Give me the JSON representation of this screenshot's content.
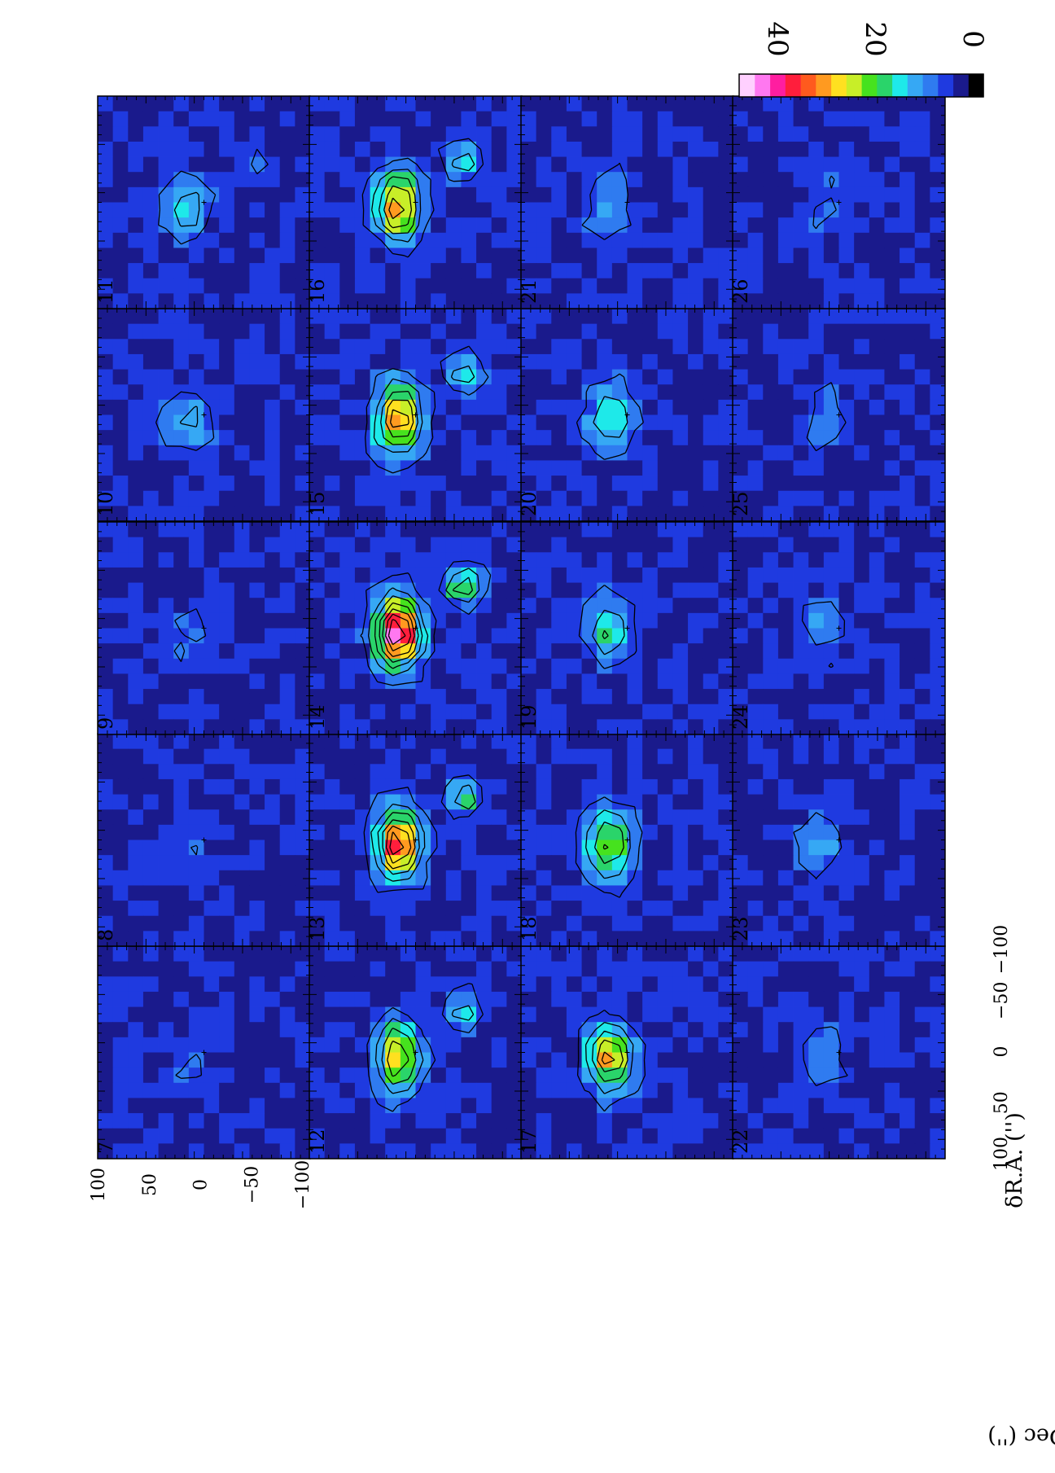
{
  "chart_data": {
    "type": "heatmap",
    "layout": "channel-map grid, 4 rows x 5 columns, rendered rotated 90 degrees counter-clockwise",
    "panels": [
      "7",
      "8",
      "9",
      "10",
      "11",
      "12",
      "13",
      "14",
      "15",
      "16",
      "17",
      "18",
      "19",
      "20",
      "21",
      "22",
      "23",
      "24",
      "25",
      "26"
    ],
    "panel_peak": [
      3,
      3,
      3,
      9,
      11,
      25,
      33,
      41,
      29,
      28,
      26,
      21,
      14,
      13,
      8,
      7,
      6,
      6,
      5,
      4
    ],
    "xlabel": "δR.A. ('')",
    "ylabel": "δDec ('')",
    "x_ticks": [
      "100",
      "50",
      "0",
      "−50",
      "−100"
    ],
    "y_ticks": [
      "100",
      "50",
      "0",
      "−50",
      "−100"
    ],
    "xlim": [
      110,
      -110
    ],
    "ylim": [
      -110,
      110
    ],
    "colorbar": {
      "ticks": [
        "40",
        "20",
        "0"
      ],
      "range": [
        -4,
        46
      ],
      "colors": [
        "#000000",
        "#1a1a8c",
        "#1f3ae0",
        "#2f7bf0",
        "#36a8f4",
        "#1ee9e9",
        "#2ad46a",
        "#46e21e",
        "#c8ee28",
        "#ffe020",
        "#ff9a20",
        "#ff5a1e",
        "#ff1e3c",
        "#ff1ea0",
        "#ff78f0",
        "#ffd0ff"
      ]
    },
    "contour_levels": [
      5,
      10,
      15,
      20,
      25,
      30,
      35
    ]
  }
}
